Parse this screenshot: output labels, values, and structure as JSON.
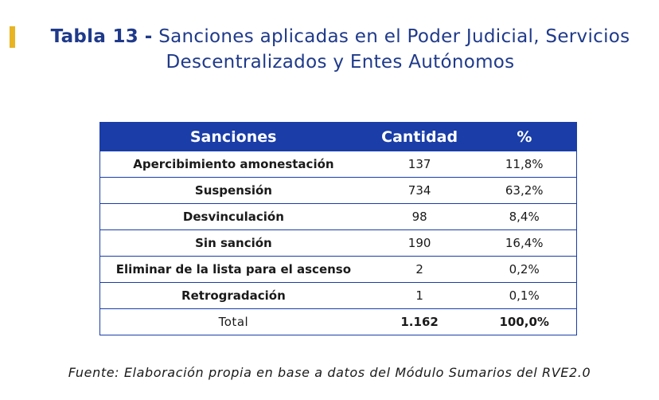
{
  "title": {
    "label": "Tabla 13",
    "separator": "-",
    "line1": "Sanciones aplicadas en el Poder Judicial, Servicios",
    "line2": "Descentralizados y Entes Autónomos"
  },
  "table": {
    "headers": [
      "Sanciones",
      "Cantidad",
      "%"
    ],
    "rows": [
      {
        "sancion": "Apercibimiento amonestación",
        "cantidad": "137",
        "porcentaje": "11,8%"
      },
      {
        "sancion": "Suspensión",
        "cantidad": "734",
        "porcentaje": "63,2%"
      },
      {
        "sancion": "Desvinculación",
        "cantidad": "98",
        "porcentaje": "8,4%"
      },
      {
        "sancion": "Sin sanción",
        "cantidad": "190",
        "porcentaje": "16,4%"
      },
      {
        "sancion": "Eliminar de la lista para el ascenso",
        "cantidad": "2",
        "porcentaje": "0,2%"
      },
      {
        "sancion": "Retrogradación",
        "cantidad": "1",
        "porcentaje": "0,1%"
      }
    ],
    "total": {
      "label": "Total",
      "cantidad": "1.162",
      "porcentaje": "100,0%"
    }
  },
  "source": "Fuente: Elaboración propia en base a datos del Módulo Sumarios del RVE2.0",
  "colors": {
    "accent_bar": "#e8b422",
    "title_blue": "#1f3a8a",
    "header_blue": "#1a3da8"
  }
}
